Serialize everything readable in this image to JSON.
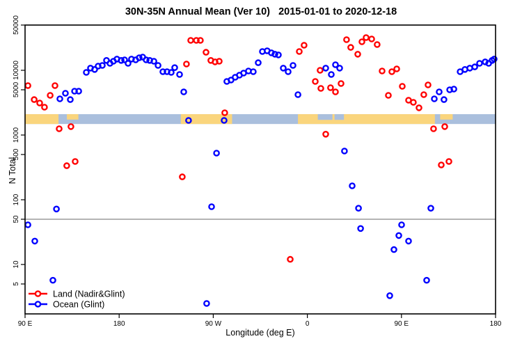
{
  "title": "30N-35N Annual Mean (Ver 10)   2015-01-01 to 2020-12-18",
  "chart_data": {
    "type": "scatter",
    "title": "30N-35N Annual Mean (Ver 10)   2015-01-01 to 2020-12-18",
    "xlabel": "Longitude (deg E)",
    "ylabel": "N Total",
    "x_axis": {
      "description": "Longitude wrapping eastward; stored as degrees east of the left edge (90E). Axis spans 450 degrees: 90E -> 180 -> 90W -> 0 -> 90E -> 180.",
      "range_offset_deg": [
        0,
        450
      ],
      "ticks": [
        {
          "offset": 0,
          "label": "90 E"
        },
        {
          "offset": 90,
          "label": "180"
        },
        {
          "offset": 180,
          "label": "90 W"
        },
        {
          "offset": 270,
          "label": "0"
        },
        {
          "offset": 360,
          "label": "90 E"
        },
        {
          "offset": 450,
          "label": "180"
        }
      ]
    },
    "y_axis": {
      "scale": "log10",
      "ticks": [
        5,
        10,
        50,
        100,
        500,
        1000,
        5000,
        10000,
        50000
      ],
      "tick_labels": [
        "5",
        "10",
        "50",
        "100",
        "500",
        "1000",
        "5000",
        "10000",
        "50000"
      ]
    },
    "grid": false,
    "reference_line": {
      "value": 50,
      "color": "#888888"
    },
    "surface_band": {
      "description": "land/ocean map strip for the 30N-35N latitude band drawn across the plot",
      "value_range": [
        1480,
        2100
      ],
      "ocean_color": "#AABFDD",
      "land_color": "#FAD57D",
      "land_segments_deg": [
        [
          0,
          32
        ],
        [
          149,
          198
        ],
        [
          261,
          392
        ]
      ],
      "land_patches_upper_deg": [
        [
          40,
          51
        ],
        [
          397,
          409
        ]
      ],
      "ocean_patches_upper_deg": [
        [
          280,
          294
        ],
        [
          296,
          305
        ]
      ]
    },
    "legend_position": "bottom-left",
    "series": [
      {
        "name": "Land (Nadir&Glint)",
        "color": "#FF0000",
        "marker": "open-circle",
        "points": [
          [
            2.7,
            5800
          ],
          [
            8.7,
            3530
          ],
          [
            14.0,
            3120
          ],
          [
            18.6,
            2690
          ],
          [
            24.0,
            4100
          ],
          [
            28.6,
            5800
          ],
          [
            32.6,
            1250
          ],
          [
            43.9,
            1350
          ],
          [
            39.9,
            336
          ],
          [
            47.9,
            390
          ],
          [
            154.4,
            12500
          ],
          [
            158.4,
            29000
          ],
          [
            163.8,
            29000
          ],
          [
            167.7,
            29000
          ],
          [
            173.1,
            19000
          ],
          [
            177.7,
            14200
          ],
          [
            181.7,
            13500
          ],
          [
            185.7,
            13800
          ],
          [
            191.0,
            2210
          ],
          [
            150.4,
            226
          ],
          [
            253.6,
            12
          ],
          [
            262.3,
            19500
          ],
          [
            266.9,
            24400
          ],
          [
            277.6,
            6730
          ],
          [
            282.9,
            5250
          ],
          [
            282.2,
            10000
          ],
          [
            287.6,
            1030
          ],
          [
            292.2,
            5380
          ],
          [
            296.9,
            4640
          ],
          [
            302.2,
            6250
          ],
          [
            307.5,
            29700
          ],
          [
            311.5,
            22600
          ],
          [
            318.2,
            17700
          ],
          [
            322.2,
            27600
          ],
          [
            326.2,
            32000
          ],
          [
            331.5,
            30500
          ],
          [
            336.8,
            25000
          ],
          [
            341.5,
            9750
          ],
          [
            350.8,
            9510
          ],
          [
            355.5,
            10500
          ],
          [
            360.8,
            5660
          ],
          [
            347.5,
            4100
          ],
          [
            366.8,
            3450
          ],
          [
            371.4,
            3200
          ],
          [
            376.8,
            2630
          ],
          [
            381.4,
            4200
          ],
          [
            385.4,
            5940
          ],
          [
            390.7,
            1250
          ],
          [
            401.4,
            1350
          ],
          [
            398.1,
            345
          ],
          [
            405.4,
            390
          ]
        ]
      },
      {
        "name": "Ocean (Glint)",
        "color": "#0000FF",
        "marker": "open-circle",
        "points": [
          [
            33.3,
            3620
          ],
          [
            38.6,
            4420
          ],
          [
            43.3,
            3530
          ],
          [
            47.3,
            4760
          ],
          [
            51.3,
            4760
          ],
          [
            58.6,
            9290
          ],
          [
            62.6,
            10800
          ],
          [
            66.6,
            10300
          ],
          [
            69.9,
            11600
          ],
          [
            73.9,
            11900
          ],
          [
            77.9,
            14200
          ],
          [
            81.2,
            12800
          ],
          [
            84.5,
            13800
          ],
          [
            87.9,
            14900
          ],
          [
            91.9,
            14200
          ],
          [
            95.2,
            14500
          ],
          [
            98.5,
            12800
          ],
          [
            101.8,
            14900
          ],
          [
            105.8,
            14500
          ],
          [
            109.2,
            15600
          ],
          [
            112.5,
            16000
          ],
          [
            115.8,
            14500
          ],
          [
            119.2,
            14200
          ],
          [
            123.2,
            13800
          ],
          [
            127.2,
            11900
          ],
          [
            131.8,
            9510
          ],
          [
            135.8,
            9510
          ],
          [
            139.8,
            9290
          ],
          [
            143.1,
            11000
          ],
          [
            147.8,
            8620
          ],
          [
            151.8,
            4640
          ],
          [
            30.0,
            72
          ],
          [
            2.7,
            41
          ],
          [
            9.3,
            23
          ],
          [
            26.6,
            5.7
          ],
          [
            156.4,
            1680
          ],
          [
            190.4,
            1680
          ],
          [
            183.1,
            525
          ],
          [
            178.4,
            78
          ],
          [
            173.7,
            2.5
          ],
          [
            193.0,
            6730
          ],
          [
            197.0,
            7070
          ],
          [
            201.0,
            7800
          ],
          [
            205.0,
            8410
          ],
          [
            209.0,
            9060
          ],
          [
            213.7,
            9750
          ],
          [
            218.3,
            9510
          ],
          [
            223.0,
            13100
          ],
          [
            227.0,
            19500
          ],
          [
            231.6,
            20000
          ],
          [
            235.6,
            18600
          ],
          [
            239.0,
            17700
          ],
          [
            242.3,
            17300
          ],
          [
            247.0,
            10800
          ],
          [
            251.6,
            9510
          ],
          [
            256.3,
            11900
          ],
          [
            261.0,
            4200
          ],
          [
            287.6,
            10800
          ],
          [
            292.9,
            8620
          ],
          [
            296.9,
            12200
          ],
          [
            300.9,
            10800
          ],
          [
            305.5,
            566
          ],
          [
            312.9,
            164
          ],
          [
            318.9,
            74
          ],
          [
            320.9,
            36
          ],
          [
            348.8,
            3.3
          ],
          [
            352.8,
            17
          ],
          [
            357.5,
            28
          ],
          [
            360.1,
            41
          ],
          [
            366.8,
            23
          ],
          [
            384.1,
            5.7
          ],
          [
            388.1,
            74
          ],
          [
            391.4,
            3620
          ],
          [
            396.1,
            4640
          ],
          [
            400.7,
            3530
          ],
          [
            406.1,
            5000
          ],
          [
            410.1,
            5130
          ],
          [
            416.1,
            9510
          ],
          [
            420.7,
            10300
          ],
          [
            425.4,
            10800
          ],
          [
            430.1,
            11300
          ],
          [
            434.7,
            12800
          ],
          [
            440.1,
            13500
          ],
          [
            443.4,
            12800
          ],
          [
            446.7,
            14200
          ],
          [
            448.7,
            14900
          ]
        ]
      }
    ]
  },
  "legend": {
    "items": [
      {
        "label": "Land (Nadir&Glint)",
        "color": "#FF0000"
      },
      {
        "label": "Ocean (Glint)",
        "color": "#0000FF"
      }
    ]
  }
}
